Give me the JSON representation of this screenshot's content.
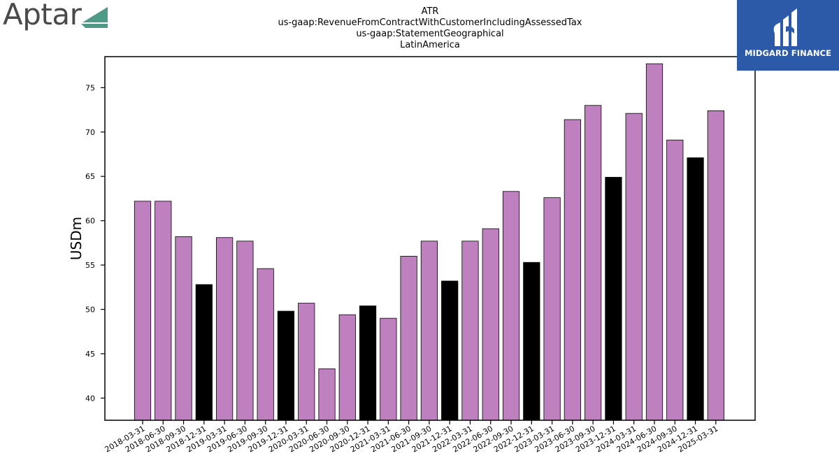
{
  "logos": {
    "left_brand": "Aptar",
    "right_brand": "MIDGARD FINANCE"
  },
  "colors": {
    "bar_default": "#bf80bf",
    "bar_year_end": "#000000",
    "aptar_mark": "#4f9a86",
    "midgard_bg": "#2c5aa8"
  },
  "chart_data": {
    "type": "bar",
    "title_lines": [
      "ATR",
      "us-gaap:RevenueFromContractWithCustomerIncludingAssessedTax",
      "us-gaap:StatementGeographical",
      "LatinAmerica"
    ],
    "xlabel": "",
    "ylabel": "USDm",
    "ylim": [
      37.5,
      78.5
    ],
    "yticks": [
      40,
      45,
      50,
      55,
      60,
      65,
      70,
      75
    ],
    "grid": false,
    "categories": [
      "2018-03-31",
      "2018-06-30",
      "2018-09-30",
      "2018-12-31",
      "2019-03-31",
      "2019-06-30",
      "2019-09-30",
      "2019-12-31",
      "2020-03-31",
      "2020-06-30",
      "2020-09-30",
      "2020-12-31",
      "2021-03-31",
      "2021-06-30",
      "2021-09-30",
      "2021-12-31",
      "2022-03-31",
      "2022-06-30",
      "2022-09-30",
      "2022-12-31",
      "2023-03-31",
      "2023-06-30",
      "2023-09-30",
      "2023-12-31",
      "2024-03-31",
      "2024-06-30",
      "2024-09-30",
      "2024-12-31",
      "2025-03-31"
    ],
    "values": [
      62.2,
      62.2,
      58.2,
      52.8,
      58.1,
      57.7,
      54.6,
      49.8,
      50.7,
      43.3,
      49.4,
      50.4,
      49.0,
      56.0,
      57.7,
      53.2,
      57.7,
      59.1,
      63.3,
      55.3,
      62.6,
      71.4,
      73.0,
      64.9,
      72.1,
      77.7,
      69.1,
      67.1,
      72.4
    ],
    "highlight": [
      false,
      false,
      false,
      true,
      false,
      false,
      false,
      true,
      false,
      false,
      false,
      true,
      false,
      false,
      false,
      true,
      false,
      false,
      false,
      true,
      false,
      false,
      false,
      true,
      false,
      false,
      false,
      true,
      false
    ]
  }
}
